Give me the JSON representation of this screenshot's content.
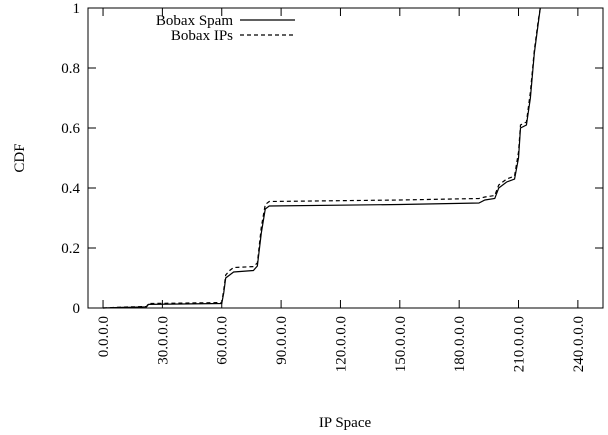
{
  "chart_data": {
    "type": "line",
    "xlabel": "IP Space",
    "ylabel": "CDF",
    "xlim": [
      -7.6,
      252.7
    ],
    "ylim": [
      0,
      1
    ],
    "xticks": [
      {
        "value": 0,
        "label": "0.0.0.0"
      },
      {
        "value": 30,
        "label": "30.0.0.0"
      },
      {
        "value": 60,
        "label": "60.0.0.0"
      },
      {
        "value": 90,
        "label": "90.0.0.0"
      },
      {
        "value": 120,
        "label": "120.0.0.0"
      },
      {
        "value": 150,
        "label": "150.0.0.0"
      },
      {
        "value": 180,
        "label": "180.0.0.0"
      },
      {
        "value": 210,
        "label": "210.0.0.0"
      },
      {
        "value": 240,
        "label": "240.0.0.0"
      }
    ],
    "yticks": [
      0,
      0.2,
      0.4,
      0.6,
      0.8,
      1
    ],
    "grid": false,
    "legend": "upper left",
    "series": [
      {
        "name": "Bobax Spam",
        "color": "#000000",
        "dash": "solid",
        "x": [
          0,
          10,
          22,
          23,
          60,
          61,
          62,
          64,
          66,
          76,
          78,
          80,
          82,
          84,
          150,
          190,
          193,
          198,
          200,
          204,
          208,
          210,
          211,
          214,
          216,
          218,
          220,
          221
        ],
        "values": [
          0,
          0.002,
          0.004,
          0.012,
          0.015,
          0.05,
          0.1,
          0.11,
          0.12,
          0.125,
          0.14,
          0.25,
          0.33,
          0.34,
          0.345,
          0.35,
          0.36,
          0.365,
          0.4,
          0.42,
          0.43,
          0.5,
          0.6,
          0.61,
          0.7,
          0.85,
          0.95,
          1
        ]
      },
      {
        "name": "Bobax IPs",
        "color": "#000000",
        "dash": "dashed",
        "x": [
          0,
          10,
          22,
          23,
          60,
          61,
          62,
          64,
          66,
          76,
          78,
          80,
          82,
          84,
          150,
          190,
          193,
          198,
          200,
          204,
          208,
          210,
          211,
          214,
          216,
          218,
          220,
          221
        ],
        "values": [
          0,
          0.003,
          0.005,
          0.015,
          0.018,
          0.06,
          0.11,
          0.125,
          0.135,
          0.138,
          0.15,
          0.27,
          0.345,
          0.355,
          0.36,
          0.365,
          0.37,
          0.375,
          0.41,
          0.43,
          0.44,
          0.52,
          0.61,
          0.62,
          0.72,
          0.86,
          0.96,
          1
        ]
      }
    ]
  }
}
